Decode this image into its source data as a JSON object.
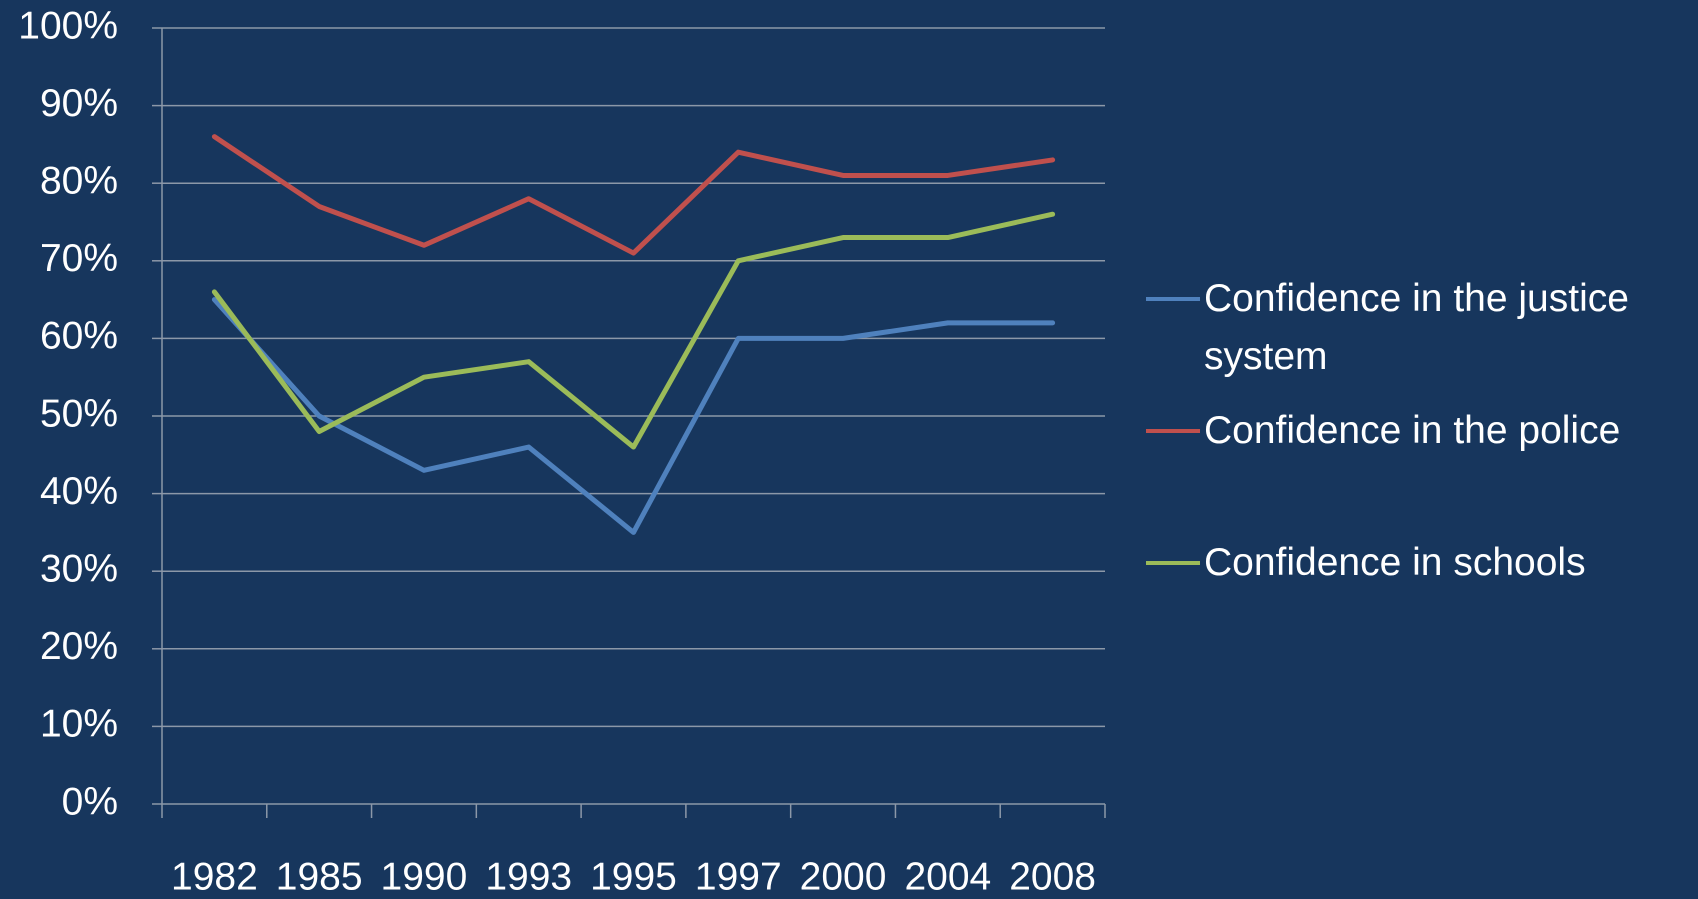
{
  "chart_data": {
    "type": "line",
    "categories": [
      "1982",
      "1985",
      "1990",
      "1993",
      "1995",
      "1997",
      "2000",
      "2004",
      "2008"
    ],
    "series": [
      {
        "name": "Confidence in the justice system",
        "color": "#4f81bd",
        "values": [
          65,
          50,
          43,
          46,
          35,
          60,
          60,
          62,
          62
        ]
      },
      {
        "name": "Confidence in the police",
        "color": "#c0504d",
        "values": [
          86,
          77,
          72,
          78,
          71,
          84,
          81,
          81,
          83
        ]
      },
      {
        "name": "Confidence in schools",
        "color": "#9bbb59",
        "values": [
          66,
          48,
          55,
          57,
          46,
          70,
          73,
          73,
          76
        ]
      }
    ],
    "ylim": [
      0,
      100
    ],
    "yticks": [
      {
        "value": 0,
        "label": "0%"
      },
      {
        "value": 10,
        "label": "10%"
      },
      {
        "value": 20,
        "label": "20%"
      },
      {
        "value": 30,
        "label": "30%"
      },
      {
        "value": 40,
        "label": "40%"
      },
      {
        "value": 50,
        "label": "50%"
      },
      {
        "value": 60,
        "label": "60%"
      },
      {
        "value": 70,
        "label": "70%"
      },
      {
        "value": 80,
        "label": "80%"
      },
      {
        "value": 90,
        "label": "90%"
      },
      {
        "value": 100,
        "label": "100%"
      }
    ],
    "grid": true,
    "legend": "right"
  }
}
